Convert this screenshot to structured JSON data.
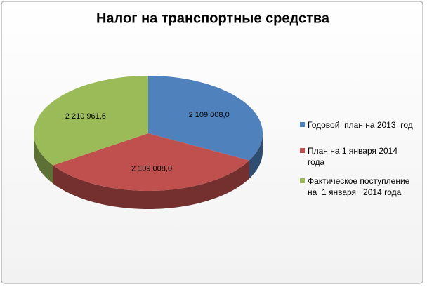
{
  "chart_data": {
    "type": "pie",
    "title": "Налог на транспортные средства",
    "categories": [
      "Годовой  план на 2013  год",
      "План на 1 января 2014 года",
      "Фактическое поступление на  1 января   2014 года"
    ],
    "values": [
      2109008.0,
      2109008.0,
      2210961.6
    ],
    "value_labels": [
      "2 109 008,0",
      "2 109 008,0",
      "2 210 961,6"
    ],
    "colors": [
      "#4f81bd",
      "#c0504d",
      "#9bbb59"
    ]
  }
}
